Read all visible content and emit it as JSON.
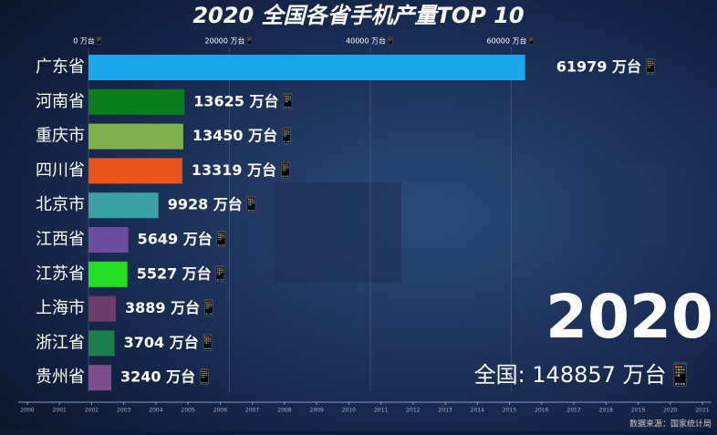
{
  "chart_data": {
    "type": "bar",
    "orientation": "horizontal",
    "title": "2020 全国各省手机产量TOP 10",
    "categories": [
      "广东省",
      "河南省",
      "重庆市",
      "四川省",
      "北京市",
      "江西省",
      "江苏省",
      "上海市",
      "浙江省",
      "贵州省"
    ],
    "values": [
      61979,
      13625,
      13450,
      13319,
      9928,
      5649,
      5527,
      3889,
      3704,
      3240
    ],
    "value_labels": [
      "61979 万台📱",
      "13625 万台📱",
      "13450 万台📱",
      "13319 万台📱",
      "9928 万台📱",
      "5649 万台📱",
      "5527 万台📱",
      "3889 万台📱",
      "3704 万台📱",
      "3240 万台📱"
    ],
    "colors": [
      "#1ba6ea",
      "#0b7d1c",
      "#80b04c",
      "#e9531c",
      "#3aa0a2",
      "#6c4c9c",
      "#22dd22",
      "#6c3c6c",
      "#1c7c4c",
      "#7c4c8c"
    ],
    "xlim": [
      0,
      65000
    ],
    "xticks": [
      {
        "value": 0,
        "label": "0 万台📱"
      },
      {
        "value": 20000,
        "label": "20000 万台📱"
      },
      {
        "value": 40000,
        "label": "40000 万台📱"
      },
      {
        "value": 60000,
        "label": "60000 万台📱"
      }
    ],
    "grid": true,
    "year_label": "2020",
    "total_label": "全国: 148857 万台📱",
    "timeline": [
      "2000",
      "2001",
      "2002",
      "2003",
      "2004",
      "2005",
      "2006",
      "2007",
      "2008",
      "2009",
      "2010",
      "2011",
      "2012",
      "2013",
      "2014",
      "2015",
      "2016",
      "2017",
      "2018",
      "2019",
      "2020",
      "2021"
    ],
    "source": "数据来源：国家统计局"
  }
}
